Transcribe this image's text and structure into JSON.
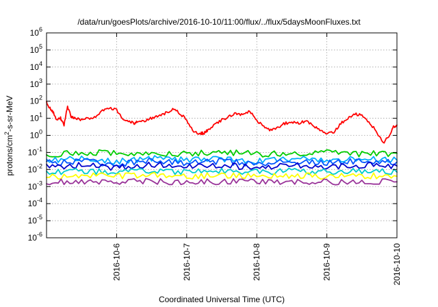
{
  "chart_data": {
    "type": "line",
    "title": "/data/run/goesPlots/archive/2016-10-10/11:00/flux/../flux/5daysMoonFluxes.txt",
    "xlabel": "Coordinated Universal Time (UTC)",
    "ylabel_base": "protons/cm",
    "ylabel_sup": "2",
    "ylabel_rest": "-s-sr-MeV",
    "yscale": "log",
    "ylim_exp": [
      -6,
      6
    ],
    "y_ticks": [
      {
        "base": "10",
        "exp": "6"
      },
      {
        "base": "10",
        "exp": "5"
      },
      {
        "base": "10",
        "exp": "4"
      },
      {
        "base": "10",
        "exp": "3"
      },
      {
        "base": "10",
        "exp": "2"
      },
      {
        "base": "10",
        "exp": "1"
      },
      {
        "base": "10",
        "exp": "0"
      },
      {
        "base": "10",
        "exp": "-1"
      },
      {
        "base": "10",
        "exp": "-2"
      },
      {
        "base": "10",
        "exp": "-3"
      },
      {
        "base": "10",
        "exp": "-4"
      },
      {
        "base": "10",
        "exp": "-5"
      },
      {
        "base": "10",
        "exp": "-6"
      }
    ],
    "xlim": [
      "2016-10-05 11:00",
      "2016-10-10 11:00"
    ],
    "x_tick_labels": [
      "2016-10-6",
      "2016-10-7",
      "2016-10-8",
      "2016-10-9",
      "2016-10-10"
    ],
    "grid": true,
    "series": [
      {
        "color": "#ff0000",
        "x": [
          0,
          0.05,
          0.1,
          0.15,
          0.2,
          0.25,
          0.3,
          0.35,
          0.4,
          0.5,
          0.6,
          0.7,
          0.8,
          0.9,
          1.0,
          1.1,
          1.2,
          1.25,
          1.3,
          1.4,
          1.5,
          1.6,
          1.7,
          1.8,
          1.9,
          2.0,
          2.1,
          2.2,
          2.25,
          2.3,
          2.4,
          2.5,
          2.6,
          2.7,
          2.8,
          2.9,
          3.0,
          3.1,
          3.2,
          3.3,
          3.4,
          3.5,
          3.6,
          3.7,
          3.8,
          3.9,
          4.0,
          4.1,
          4.2,
          4.3,
          4.4,
          4.5,
          4.6,
          4.7,
          4.8,
          4.9,
          4.95,
          5.0
        ],
        "y": [
          80,
          40,
          20,
          8,
          10,
          4,
          50,
          12,
          10,
          8,
          10,
          12,
          30,
          40,
          30,
          8,
          6,
          5,
          6,
          7,
          10,
          15,
          20,
          35,
          20,
          8,
          1.5,
          1.3,
          1.4,
          2,
          4,
          8,
          12,
          20,
          15,
          25,
          8,
          3,
          2,
          3,
          5,
          6,
          5,
          7,
          4,
          2,
          1.2,
          1.5,
          5,
          10,
          18,
          15,
          6,
          2,
          0.35,
          1,
          3,
          4
        ]
      },
      {
        "color": "#00cc00",
        "x": [
          0,
          0.5,
          1.0,
          1.5,
          2.0,
          2.5,
          3.0,
          3.5,
          4.0,
          4.5,
          5.0
        ],
        "y": [
          0.08,
          0.09,
          0.1,
          0.08,
          0.09,
          0.1,
          0.08,
          0.09,
          0.1,
          0.08,
          0.09
        ]
      },
      {
        "color": "#00aaff",
        "x": [
          0,
          0.5,
          1.0,
          1.5,
          2.0,
          2.5,
          3.0,
          3.5,
          4.0,
          4.5,
          5.0
        ],
        "y": [
          0.035,
          0.04,
          0.03,
          0.045,
          0.035,
          0.04,
          0.03,
          0.045,
          0.035,
          0.04,
          0.035
        ]
      },
      {
        "color": "#0055ff",
        "x": [
          0,
          0.5,
          1.0,
          1.5,
          2.0,
          2.5,
          3.0,
          3.5,
          4.0,
          4.5,
          5.0
        ],
        "y": [
          0.025,
          0.03,
          0.02,
          0.035,
          0.025,
          0.03,
          0.022,
          0.03,
          0.025,
          0.03,
          0.028
        ]
      },
      {
        "color": "#0000cc",
        "x": [
          0,
          0.5,
          1.0,
          1.5,
          2.0,
          2.5,
          3.0,
          3.5,
          4.0,
          4.5,
          5.0
        ],
        "y": [
          0.015,
          0.018,
          0.012,
          0.02,
          0.015,
          0.018,
          0.013,
          0.018,
          0.015,
          0.018,
          0.016
        ]
      },
      {
        "color": "#00cccc",
        "x": [
          0,
          0.5,
          1.0,
          1.5,
          2.0,
          2.5,
          3.0,
          3.5,
          4.0,
          4.5,
          5.0
        ],
        "y": [
          0.007,
          0.008,
          0.007,
          0.008,
          0.007,
          0.008,
          0.007,
          0.008,
          0.007,
          0.008,
          0.007
        ]
      },
      {
        "color": "#ffff00",
        "x": [
          0,
          0.5,
          1.0,
          1.5,
          2.0,
          2.5,
          3.0,
          3.5,
          4.0,
          4.5,
          5.0
        ],
        "y": [
          0.004,
          0.0045,
          0.004,
          0.0045,
          0.004,
          0.0045,
          0.004,
          0.0045,
          0.004,
          0.0045,
          0.004
        ]
      },
      {
        "color": "#993399",
        "x": [
          0,
          0.5,
          1.0,
          1.5,
          2.0,
          2.5,
          3.0,
          3.5,
          4.0,
          4.5,
          5.0
        ],
        "y": [
          0.0018,
          0.002,
          0.0019,
          0.002,
          0.0018,
          0.002,
          0.0019,
          0.002,
          0.0018,
          0.002,
          0.0019
        ]
      }
    ]
  }
}
